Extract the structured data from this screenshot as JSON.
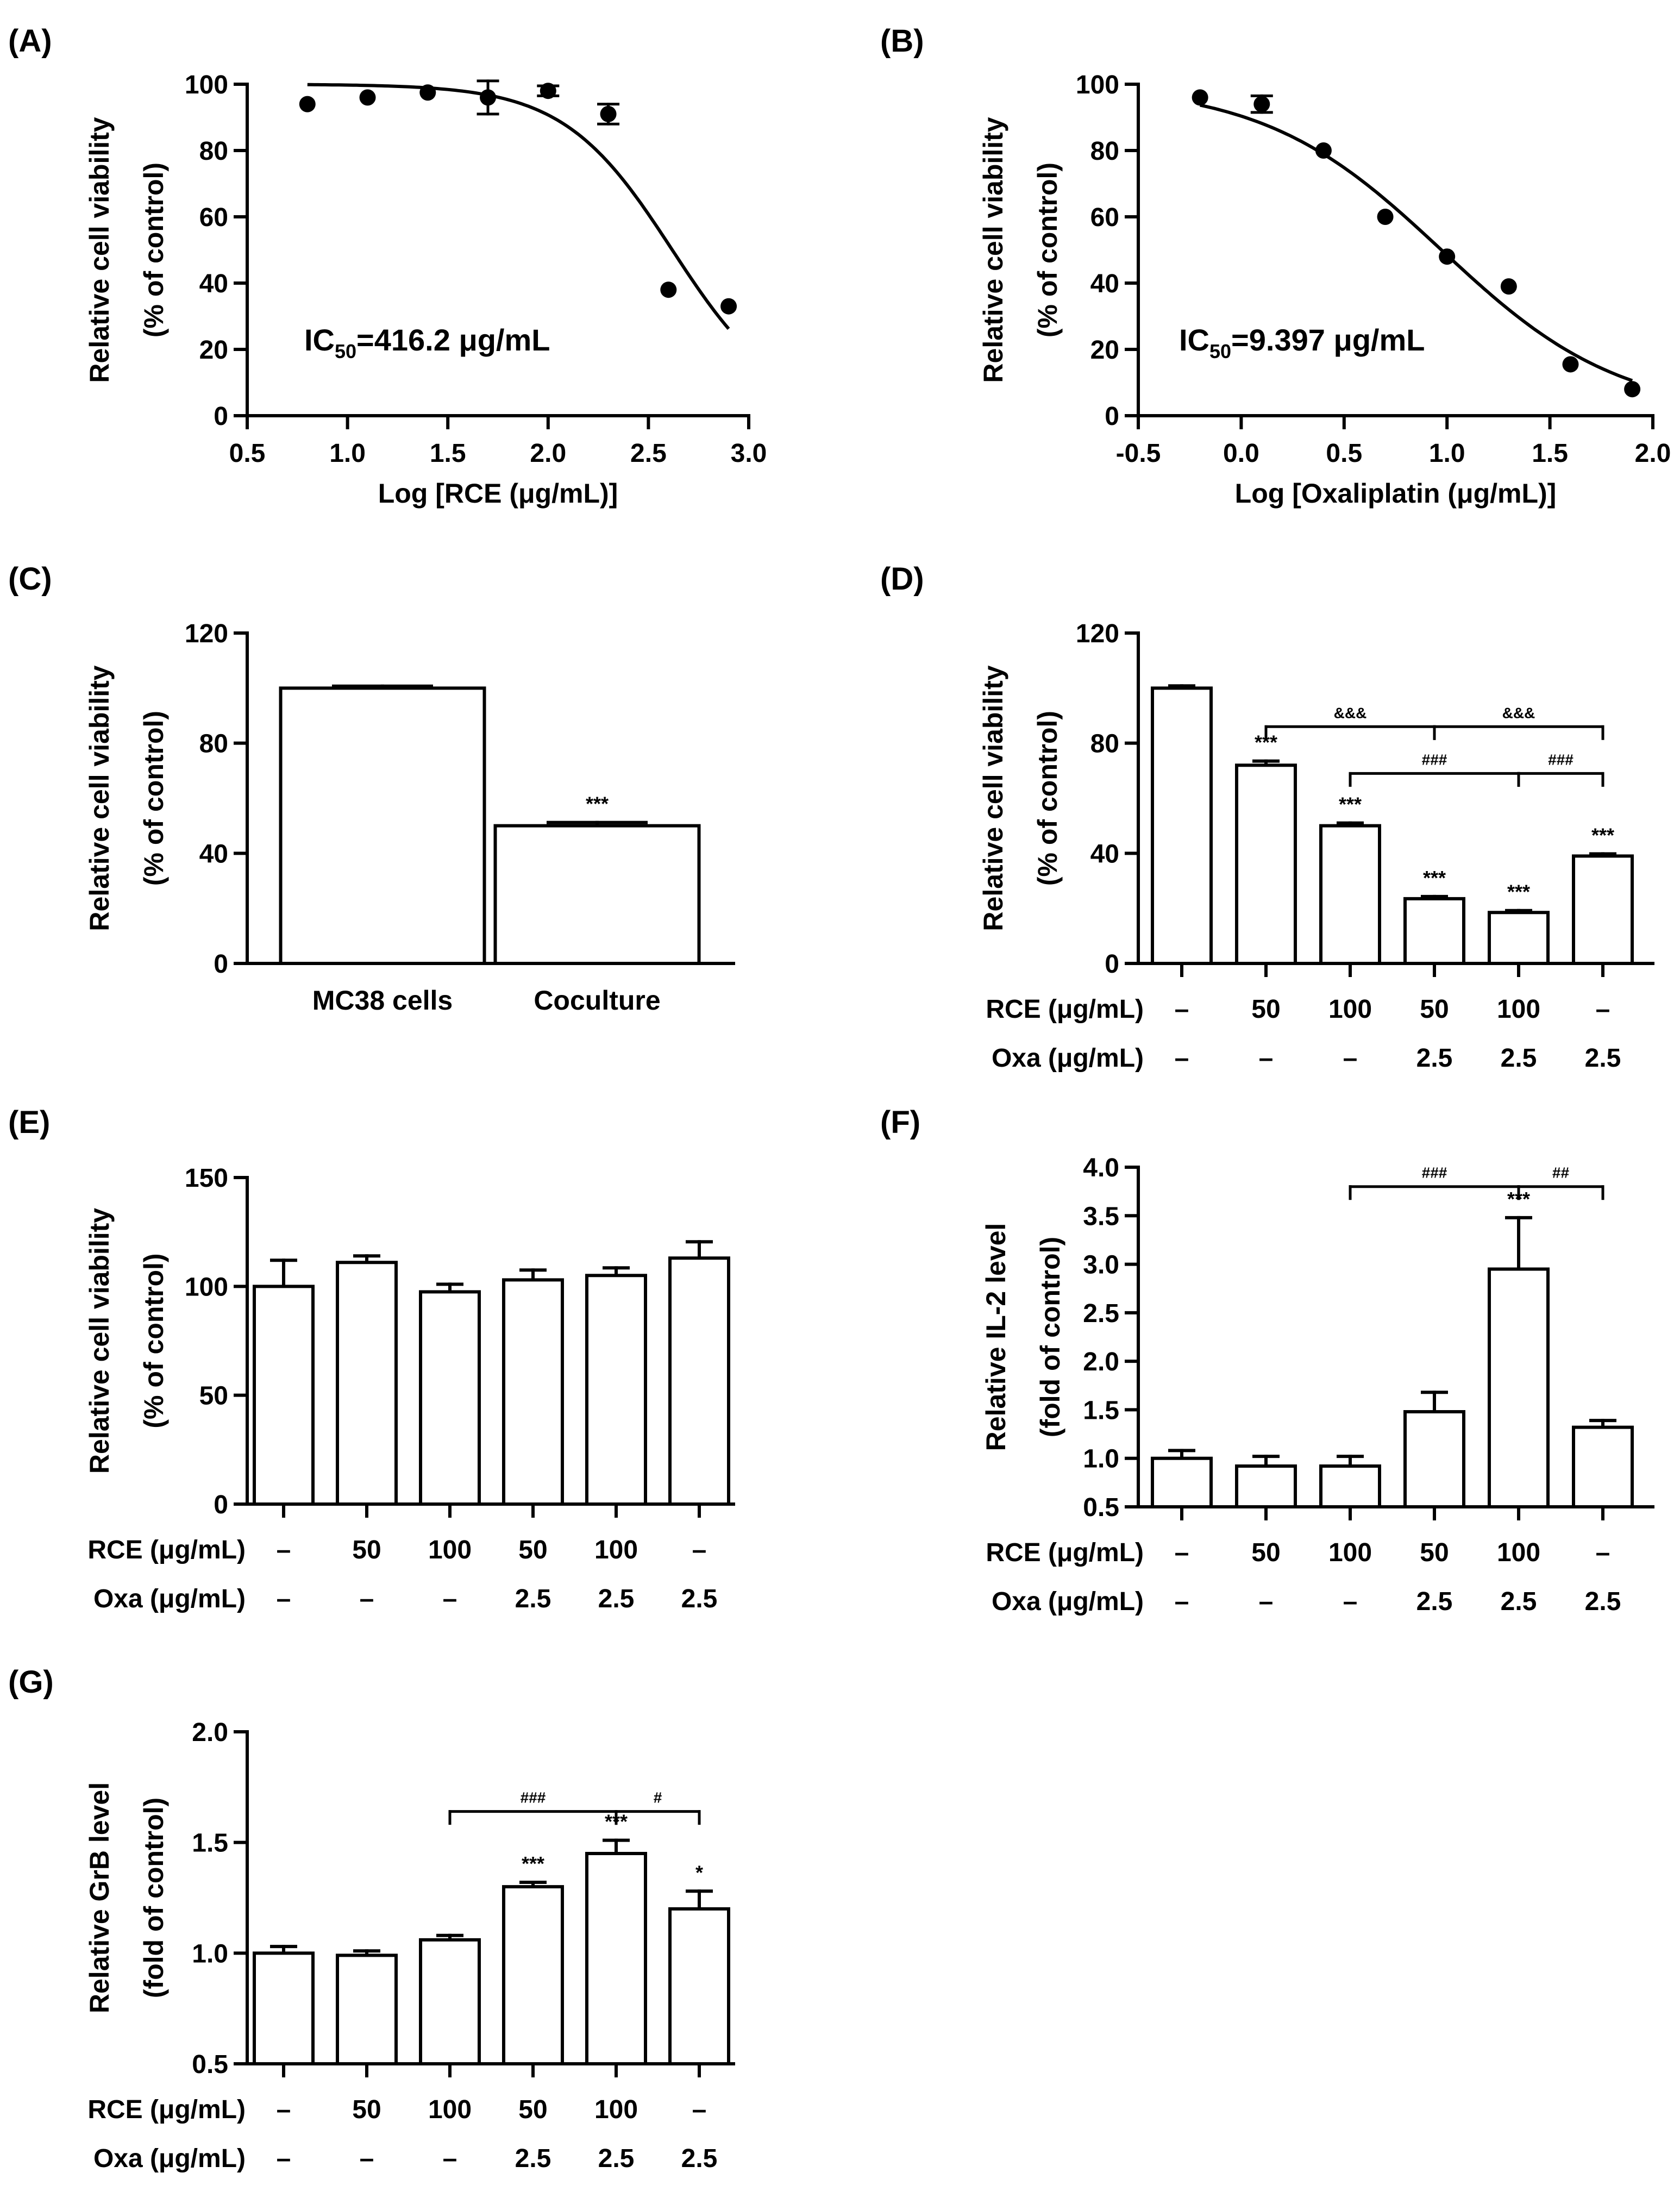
{
  "figure": {
    "cond_row_labels": [
      "RCE (μg/mL)",
      "Oxa (μg/mL)"
    ],
    "cond_rce": [
      "–",
      "50",
      "100",
      "50",
      "100",
      "–"
    ],
    "cond_oxa": [
      "–",
      "–",
      "–",
      "2.5",
      "2.5",
      "2.5"
    ]
  },
  "chart_data": [
    {
      "panel": "(A)",
      "type": "scatter",
      "xlabel": "Log [RCE (μg/mL)]",
      "ylabel": [
        "Relative cell viability",
        "(% of control)"
      ],
      "xlim": [
        0.5,
        3.0
      ],
      "ylim": [
        0,
        100
      ],
      "xticks": [
        "0.5",
        "1.0",
        "1.5",
        "2.0",
        "2.5",
        "3.0"
      ],
      "yticks": [
        "0",
        "20",
        "40",
        "60",
        "80",
        "100"
      ],
      "points": [
        {
          "x": 0.8,
          "y": 94,
          "err": 0
        },
        {
          "x": 1.1,
          "y": 96,
          "err": 0
        },
        {
          "x": 1.4,
          "y": 97.5,
          "err": 0
        },
        {
          "x": 1.7,
          "y": 96,
          "err": 5
        },
        {
          "x": 2.0,
          "y": 98,
          "err": 1.5
        },
        {
          "x": 2.3,
          "y": 91,
          "err": 3
        },
        {
          "x": 2.6,
          "y": 38,
          "err": 0
        },
        {
          "x": 2.9,
          "y": 33,
          "err": 0
        }
      ],
      "fit": {
        "top": 100,
        "bottom": 0,
        "logIC50": 2.619,
        "hill": -1.6,
        "xrange": [
          0.8,
          2.9
        ]
      },
      "annotation": {
        "prefix": "IC",
        "sub": "50",
        "value": "=416.2 μg/mL"
      }
    },
    {
      "panel": "(B)",
      "type": "scatter",
      "xlabel": "Log [Oxaliplatin (μg/mL)]",
      "ylabel": [
        "Relative cell viability",
        "(% of control)"
      ],
      "xlim": [
        -0.5,
        2.0
      ],
      "ylim": [
        0,
        100
      ],
      "xticks": [
        "-0.5",
        "0.0",
        "0.5",
        "1.0",
        "1.5",
        "2.0"
      ],
      "yticks": [
        "0",
        "20",
        "40",
        "60",
        "80",
        "100"
      ],
      "points": [
        {
          "x": -0.2,
          "y": 96,
          "err": 0
        },
        {
          "x": 0.1,
          "y": 94,
          "err": 2.5
        },
        {
          "x": 0.4,
          "y": 80,
          "err": 0
        },
        {
          "x": 0.7,
          "y": 60,
          "err": 0
        },
        {
          "x": 1.0,
          "y": 48,
          "err": 0
        },
        {
          "x": 1.3,
          "y": 39,
          "err": 0
        },
        {
          "x": 1.6,
          "y": 15.5,
          "err": 0
        },
        {
          "x": 1.9,
          "y": 8,
          "err": 0
        }
      ],
      "fit": {
        "top": 100,
        "bottom": 0,
        "logIC50": 0.973,
        "hill": -1.0,
        "xrange": [
          -0.2,
          1.9
        ]
      },
      "annotation": {
        "prefix": "IC",
        "sub": "50",
        "value": "=9.397 μg/mL"
      }
    },
    {
      "panel": "(C)",
      "type": "bar",
      "ylabel": [
        "Relative cell viability",
        "(% of control)"
      ],
      "ylim": [
        0,
        120
      ],
      "yticks": [
        "0",
        "40",
        "80",
        "120"
      ],
      "categories": [
        "MC38 cells",
        "Coculture"
      ],
      "values": [
        100,
        50
      ],
      "errors": [
        0.7,
        1.2
      ],
      "stars": [
        "",
        "***"
      ]
    },
    {
      "panel": "(D)",
      "type": "bar",
      "ylabel": [
        "Relative cell viability",
        "(% of control)"
      ],
      "ylim": [
        0,
        120
      ],
      "yticks": [
        "0",
        "40",
        "80",
        "120"
      ],
      "values": [
        100,
        72,
        50,
        23.5,
        18.5,
        39
      ],
      "errors": [
        0.8,
        1.5,
        1,
        0.8,
        0.7,
        0.8
      ],
      "stars": [
        "",
        "***",
        "***",
        "***",
        "***",
        "***"
      ],
      "brackets": [
        {
          "from": 1,
          "to": 3,
          "y": 86,
          "label": "&&&",
          "tick": "up"
        },
        {
          "from": 3,
          "to": 5,
          "y": 86,
          "label": "&&&",
          "tick": "down"
        },
        {
          "from": 2,
          "to": 4,
          "y": 69,
          "label": "###",
          "tick": "up"
        },
        {
          "from": 4,
          "to": 5,
          "y": 69,
          "label": "###",
          "tick": "down"
        }
      ]
    },
    {
      "panel": "(E)",
      "type": "bar",
      "ylabel": [
        "Relative cell viability",
        "(% of control)"
      ],
      "ylim": [
        0,
        150
      ],
      "yticks": [
        "0",
        "50",
        "100",
        "150"
      ],
      "values": [
        100,
        111,
        97.5,
        103,
        105,
        113
      ],
      "errors": [
        12,
        3,
        3.5,
        4.5,
        3.5,
        7.5
      ],
      "stars": [
        "",
        "",
        "",
        "",
        "",
        ""
      ]
    },
    {
      "panel": "(F)",
      "type": "bar",
      "ylabel": [
        "Relative IL-2 level",
        "(fold of control)"
      ],
      "ylim": [
        0.5,
        4.0
      ],
      "yticks": [
        "0.5",
        "1.0",
        "1.5",
        "2.0",
        "2.5",
        "3.0",
        "3.5",
        "4.0"
      ],
      "values": [
        1.0,
        0.92,
        0.92,
        1.48,
        2.95,
        1.32
      ],
      "errors": [
        0.08,
        0.1,
        0.1,
        0.2,
        0.53,
        0.07
      ],
      "stars": [
        "",
        "",
        "",
        "",
        "***",
        ""
      ],
      "brackets": [
        {
          "from": 2,
          "to": 4,
          "y": 3.8,
          "label": "###",
          "tick": "down"
        },
        {
          "from": 4,
          "to": 5,
          "y": 3.8,
          "label": "##",
          "tick": "down"
        }
      ]
    },
    {
      "panel": "(G)",
      "type": "bar",
      "ylabel": [
        "Relative GrB level",
        "(fold of control)"
      ],
      "ylim": [
        0.5,
        2.0
      ],
      "yticks": [
        "0.5",
        "1.0",
        "1.5",
        "2.0"
      ],
      "values": [
        1.0,
        0.99,
        1.06,
        1.3,
        1.45,
        1.2
      ],
      "errors": [
        0.03,
        0.02,
        0.02,
        0.02,
        0.06,
        0.08
      ],
      "stars": [
        "",
        "",
        "",
        "***",
        "***",
        "*"
      ],
      "brackets": [
        {
          "from": 2,
          "to": 4,
          "y": 1.64,
          "label": "###",
          "tick": "up"
        },
        {
          "from": 4,
          "to": 5,
          "y": 1.64,
          "label": "#",
          "tick": "down"
        }
      ]
    }
  ]
}
